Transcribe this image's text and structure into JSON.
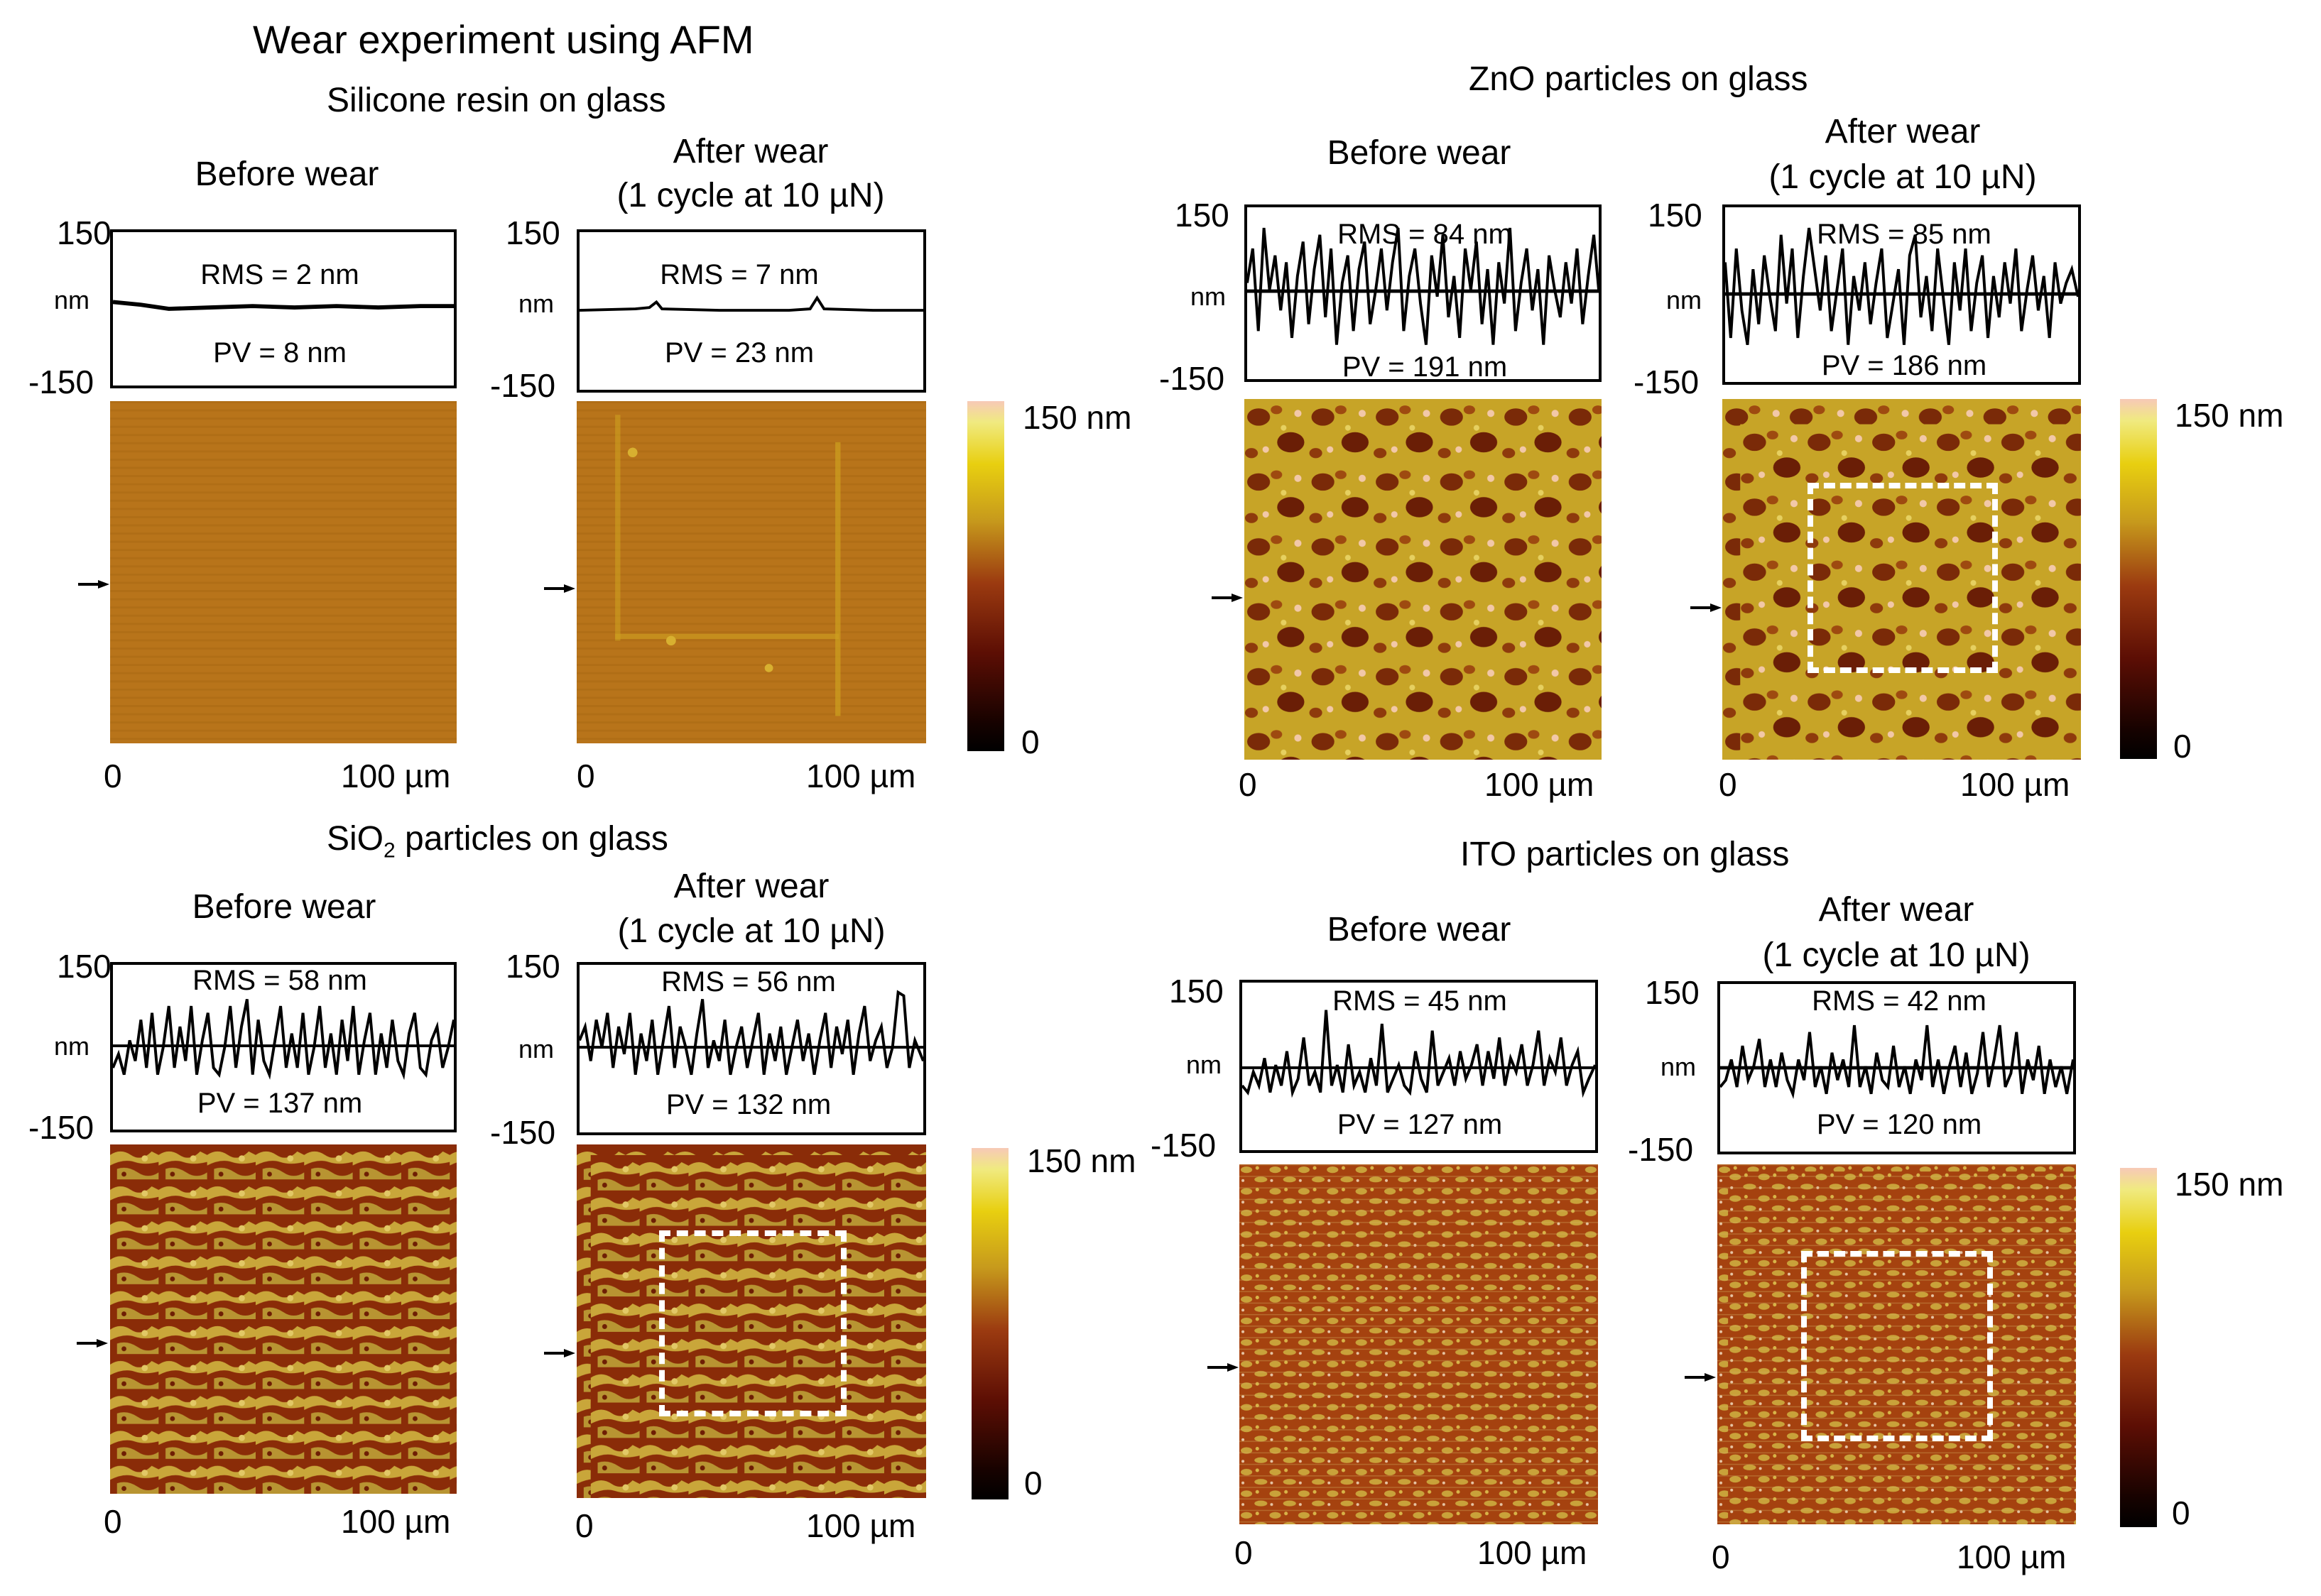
{
  "title": "Wear experiment using AFM",
  "legend_max": "150 nm",
  "legend_min": "0",
  "axis": {
    "top": "150",
    "mid": "nm",
    "bottom": "-150",
    "x_start": "0",
    "x_end": "100 µm"
  },
  "captions": {
    "before": "Before wear",
    "after_line1": "After wear",
    "after_line2": "(1 cycle at 10 µN)"
  },
  "panels": {
    "silicone": {
      "title": "Silicone resin on glass",
      "before": {
        "rms": "RMS = 2 nm",
        "pv": "PV = 8 nm"
      },
      "after": {
        "rms": "RMS = 7 nm",
        "pv": "PV = 23 nm"
      }
    },
    "zno": {
      "title": "ZnO particles on glass",
      "before": {
        "rms": "RMS = 84 nm",
        "pv": "PV = 191 nm"
      },
      "after": {
        "rms": "RMS = 85 nm",
        "pv": "PV = 186 nm"
      }
    },
    "sio2": {
      "title_pre": "SiO",
      "title_sub": "2",
      "title_post": " particles on glass",
      "before": {
        "rms": "RMS = 58 nm",
        "pv": "PV = 137 nm"
      },
      "after": {
        "rms": "RMS = 56 nm",
        "pv": "PV = 132 nm"
      }
    },
    "ito": {
      "title": "ITO particles on glass",
      "before": {
        "rms": "RMS = 45 nm",
        "pv": "PV = 127 nm"
      },
      "after": {
        "rms": "RMS = 42 nm",
        "pv": "PV = 120 nm"
      }
    }
  }
}
